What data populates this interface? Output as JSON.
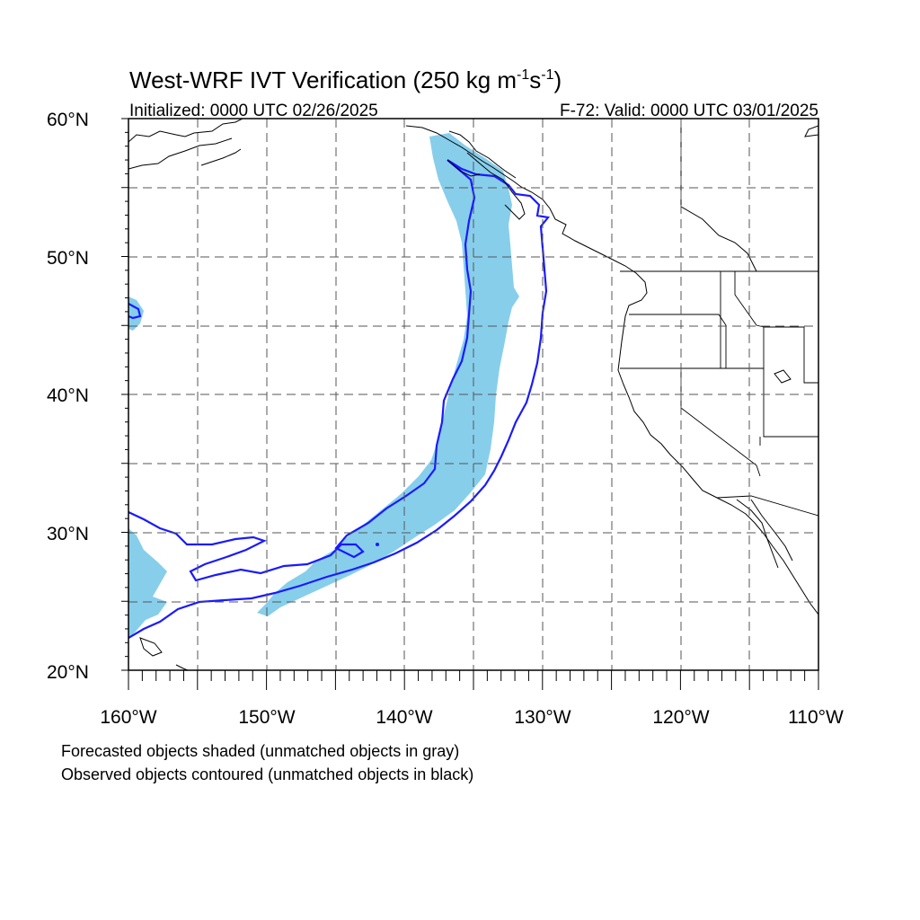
{
  "title": "West-WRF IVT Verification (250 kg m",
  "title_exp1": "-1",
  "title_mid": "s",
  "title_exp2": "-1",
  "title_end": ")",
  "initialized": "Initialized: 0000 UTC 02/26/2025",
  "valid": "F-72: Valid: 0000 UTC 03/01/2025",
  "map": {
    "projection": "cylindrical equidistant",
    "lon_range": [
      -160,
      -110
    ],
    "lat_range": [
      20,
      60
    ],
    "grid_spacing_deg": 5,
    "grid_style": "dashed",
    "lat_labels": [
      "60°N",
      "50°N",
      "40°N",
      "30°N",
      "20°N"
    ],
    "lon_labels": [
      "160°W",
      "150°W",
      "140°W",
      "130°W",
      "120°W",
      "110°W"
    ]
  },
  "legend": {
    "line1": "Forecasted objects shaded (unmatched objects in gray)",
    "line2": "Observed objects contoured (unmatched objects in black)"
  },
  "colors": {
    "forecast_fill": "#87CEEB",
    "observed_contour": "#1a1aff",
    "coastline": "#000000",
    "grid": "#555555"
  }
}
